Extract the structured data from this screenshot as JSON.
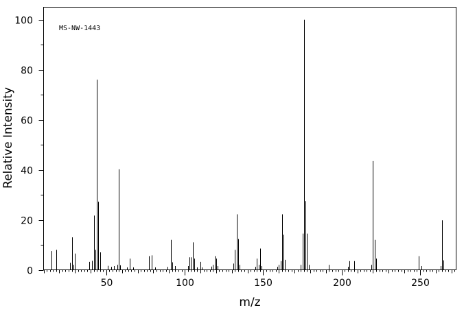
{
  "chart_data": {
    "type": "bar",
    "title": "",
    "annotation": "MS-NW-1443",
    "xlabel": "m/z",
    "ylabel": "Relative Intensity",
    "xlim": [
      10,
      273
    ],
    "ylim": [
      0,
      105
    ],
    "x_ticks": [
      50,
      100,
      150,
      200,
      250
    ],
    "y_ticks": [
      0,
      20,
      40,
      60,
      80,
      100
    ],
    "grid": false,
    "bar_color": "#000000",
    "peaks": [
      {
        "x": 15,
        "y": 7.5
      },
      {
        "x": 18,
        "y": 8.0
      },
      {
        "x": 27,
        "y": 2.8
      },
      {
        "x": 28,
        "y": 13.0
      },
      {
        "x": 29,
        "y": 2.0
      },
      {
        "x": 30,
        "y": 6.5
      },
      {
        "x": 39,
        "y": 3.2
      },
      {
        "x": 41,
        "y": 3.6
      },
      {
        "x": 42,
        "y": 21.7
      },
      {
        "x": 43,
        "y": 8.0
      },
      {
        "x": 44,
        "y": 76.0
      },
      {
        "x": 45,
        "y": 27.2
      },
      {
        "x": 46,
        "y": 7.0
      },
      {
        "x": 51,
        "y": 1.6
      },
      {
        "x": 53,
        "y": 1.2
      },
      {
        "x": 55,
        "y": 1.5
      },
      {
        "x": 57,
        "y": 2.0
      },
      {
        "x": 58,
        "y": 40.2
      },
      {
        "x": 59,
        "y": 1.8
      },
      {
        "x": 63,
        "y": 1.0
      },
      {
        "x": 65,
        "y": 4.5
      },
      {
        "x": 67,
        "y": 1.0
      },
      {
        "x": 77,
        "y": 5.5
      },
      {
        "x": 79,
        "y": 5.8
      },
      {
        "x": 81,
        "y": 1.0
      },
      {
        "x": 89,
        "y": 1.2
      },
      {
        "x": 91,
        "y": 12.0
      },
      {
        "x": 92,
        "y": 3.0
      },
      {
        "x": 94,
        "y": 1.5
      },
      {
        "x": 102,
        "y": 1.5
      },
      {
        "x": 103,
        "y": 5.0
      },
      {
        "x": 104,
        "y": 5.0
      },
      {
        "x": 105,
        "y": 11.0
      },
      {
        "x": 106,
        "y": 4.5
      },
      {
        "x": 108,
        "y": 1.0
      },
      {
        "x": 110,
        "y": 3.2
      },
      {
        "x": 111,
        "y": 1.0
      },
      {
        "x": 117,
        "y": 1.3
      },
      {
        "x": 118,
        "y": 2.0
      },
      {
        "x": 119,
        "y": 5.5
      },
      {
        "x": 120,
        "y": 4.5
      },
      {
        "x": 121,
        "y": 1.5
      },
      {
        "x": 131,
        "y": 2.5
      },
      {
        "x": 132,
        "y": 8.0
      },
      {
        "x": 133,
        "y": 22.2
      },
      {
        "x": 134,
        "y": 12.3
      },
      {
        "x": 135,
        "y": 2.0
      },
      {
        "x": 145,
        "y": 1.2
      },
      {
        "x": 146,
        "y": 4.5
      },
      {
        "x": 147,
        "y": 2.0
      },
      {
        "x": 148,
        "y": 8.5
      },
      {
        "x": 149,
        "y": 1.5
      },
      {
        "x": 159,
        "y": 1.2
      },
      {
        "x": 160,
        "y": 2.0
      },
      {
        "x": 161,
        "y": 3.5
      },
      {
        "x": 162,
        "y": 22.2
      },
      {
        "x": 163,
        "y": 14.0
      },
      {
        "x": 164,
        "y": 4.0
      },
      {
        "x": 174,
        "y": 2.0
      },
      {
        "x": 175,
        "y": 14.5
      },
      {
        "x": 176,
        "y": 100.0
      },
      {
        "x": 177,
        "y": 27.5
      },
      {
        "x": 178,
        "y": 14.5
      },
      {
        "x": 179,
        "y": 2.0
      },
      {
        "x": 192,
        "y": 2.0
      },
      {
        "x": 204,
        "y": 1.2
      },
      {
        "x": 205,
        "y": 3.5
      },
      {
        "x": 208,
        "y": 3.5
      },
      {
        "x": 219,
        "y": 2.0
      },
      {
        "x": 220,
        "y": 43.5
      },
      {
        "x": 221,
        "y": 12.0
      },
      {
        "x": 222,
        "y": 4.5
      },
      {
        "x": 249,
        "y": 5.5
      },
      {
        "x": 251,
        "y": 1.5
      },
      {
        "x": 263,
        "y": 1.5
      },
      {
        "x": 264,
        "y": 19.8
      },
      {
        "x": 265,
        "y": 3.8
      }
    ]
  }
}
